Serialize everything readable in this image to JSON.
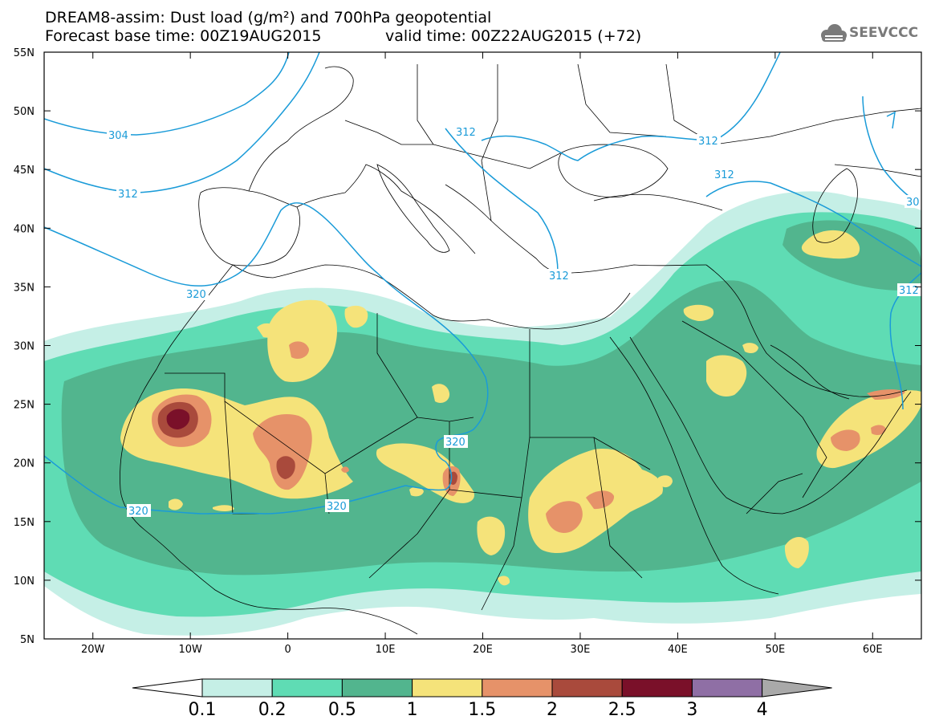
{
  "title": {
    "line1": "DREAM8-assim: Dust load (g/m²) and 700hPa geopotential",
    "base_time": "Forecast base time: 00Z19AUG2015",
    "valid_time": "valid time: 00Z22AUG2015 (+72)"
  },
  "logo": {
    "text": "SEEVCCC",
    "icon": "cloud-icon"
  },
  "axes": {
    "x_ticks": [
      "20W",
      "10W",
      "0",
      "10E",
      "20E",
      "30E",
      "40E",
      "50E",
      "60E"
    ],
    "y_ticks": [
      "55N",
      "50N",
      "45N",
      "40N",
      "35N",
      "30N",
      "25N",
      "20N",
      "15N",
      "10N",
      "5N"
    ],
    "lon_range": [
      -25,
      65
    ],
    "lat_range": [
      5,
      55
    ]
  },
  "colorbar": {
    "labels": [
      "0.1",
      "0.2",
      "0.5",
      "1",
      "1.5",
      "2",
      "2.5",
      "3",
      "4"
    ],
    "colors": [
      "#ffffff",
      "#c5efe6",
      "#5fdcb4",
      "#52b58e",
      "#f5e37a",
      "#e69269",
      "#a94a3c",
      "#7a1029",
      "#8f6fa5",
      "#a9a9a9"
    ]
  },
  "geopotential_labels": [
    "304",
    "312",
    "312",
    "320",
    "312",
    "312",
    "312",
    "312",
    "320",
    "320",
    "320",
    "30"
  ],
  "colors": {
    "contour": "#1a9bd8",
    "frame": "#000000"
  }
}
